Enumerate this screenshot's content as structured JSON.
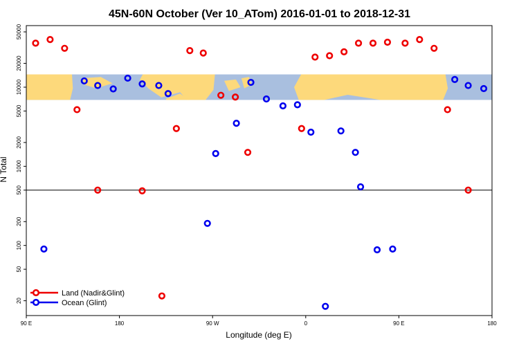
{
  "chart_data": {
    "type": "scatter",
    "title": "45N-60N October (Ver 10_ATom)   2016-01-01 to 2018-12-31",
    "xlabel": "Longitude (deg E)",
    "ylabel": "N Total",
    "x_scale": "linear",
    "y_scale": "log",
    "xlim": [
      90,
      540
    ],
    "ylim": [
      13,
      60000
    ],
    "x_ticks": [
      {
        "value": 90,
        "label": "90 E"
      },
      {
        "value": 180,
        "label": "180"
      },
      {
        "value": 270,
        "label": "90 W"
      },
      {
        "value": 360,
        "label": "0"
      },
      {
        "value": 450,
        "label": "90 E"
      },
      {
        "value": 540,
        "label": "180"
      }
    ],
    "y_ticks": [
      {
        "value": 20,
        "label": "20"
      },
      {
        "value": 50,
        "label": "50"
      },
      {
        "value": 100,
        "label": "100"
      },
      {
        "value": 200,
        "label": "200"
      },
      {
        "value": 500,
        "label": "500"
      },
      {
        "value": 1000,
        "label": "1000"
      },
      {
        "value": 2000,
        "label": "2000"
      },
      {
        "value": 5000,
        "label": "5000"
      },
      {
        "value": 10000,
        "label": "10000"
      },
      {
        "value": 20000,
        "label": "20000"
      },
      {
        "value": 50000,
        "label": "50000"
      }
    ],
    "reference_line": {
      "y": 500,
      "color": "#000000"
    },
    "map_strip": {
      "y_range": [
        6900,
        14500
      ],
      "ocean_color": "#a9bfdf",
      "land_color": "#fdd97b"
    },
    "legend": {
      "position": "bottom-left",
      "entries": [
        {
          "label": "Land (Nadir&Glint)",
          "color": "#ee0000"
        },
        {
          "label": "Ocean (Glint)",
          "color": "#0000ee"
        }
      ]
    },
    "series": [
      {
        "name": "Land (Nadir&Glint)",
        "color": "#ee0000",
        "points": [
          {
            "x": 99,
            "y": 36000
          },
          {
            "x": 113,
            "y": 40000
          },
          {
            "x": 127,
            "y": 31000
          },
          {
            "x": 139,
            "y": 5200
          },
          {
            "x": 159,
            "y": 500
          },
          {
            "x": 202,
            "y": 490
          },
          {
            "x": 221,
            "y": 23
          },
          {
            "x": 235,
            "y": 3000
          },
          {
            "x": 248,
            "y": 29000
          },
          {
            "x": 261,
            "y": 27000
          },
          {
            "x": 278,
            "y": 7900
          },
          {
            "x": 292,
            "y": 7500
          },
          {
            "x": 304,
            "y": 1500
          },
          {
            "x": 356,
            "y": 3000
          },
          {
            "x": 369,
            "y": 24000
          },
          {
            "x": 383,
            "y": 25000
          },
          {
            "x": 397,
            "y": 28000
          },
          {
            "x": 411,
            "y": 36000
          },
          {
            "x": 425,
            "y": 36000
          },
          {
            "x": 439,
            "y": 37000
          },
          {
            "x": 456,
            "y": 36000
          },
          {
            "x": 470,
            "y": 40000
          },
          {
            "x": 484,
            "y": 31000
          },
          {
            "x": 497,
            "y": 5200
          },
          {
            "x": 517,
            "y": 500
          }
        ]
      },
      {
        "name": "Ocean (Glint)",
        "color": "#0000ee",
        "points": [
          {
            "x": 107,
            "y": 90
          },
          {
            "x": 146,
            "y": 12000
          },
          {
            "x": 159,
            "y": 10500
          },
          {
            "x": 174,
            "y": 9500
          },
          {
            "x": 188,
            "y": 13000
          },
          {
            "x": 202,
            "y": 11000
          },
          {
            "x": 218,
            "y": 10500
          },
          {
            "x": 227,
            "y": 8300
          },
          {
            "x": 265,
            "y": 190
          },
          {
            "x": 273,
            "y": 1450
          },
          {
            "x": 293,
            "y": 3500
          },
          {
            "x": 307,
            "y": 11500
          },
          {
            "x": 322,
            "y": 7100
          },
          {
            "x": 338,
            "y": 5800
          },
          {
            "x": 352,
            "y": 6000
          },
          {
            "x": 365,
            "y": 2700
          },
          {
            "x": 379,
            "y": 17
          },
          {
            "x": 394,
            "y": 2800
          },
          {
            "x": 408,
            "y": 1500
          },
          {
            "x": 413,
            "y": 550
          },
          {
            "x": 429,
            "y": 88
          },
          {
            "x": 444,
            "y": 90
          },
          {
            "x": 504,
            "y": 12500
          },
          {
            "x": 517,
            "y": 10500
          },
          {
            "x": 532,
            "y": 9600
          }
        ]
      }
    ]
  }
}
